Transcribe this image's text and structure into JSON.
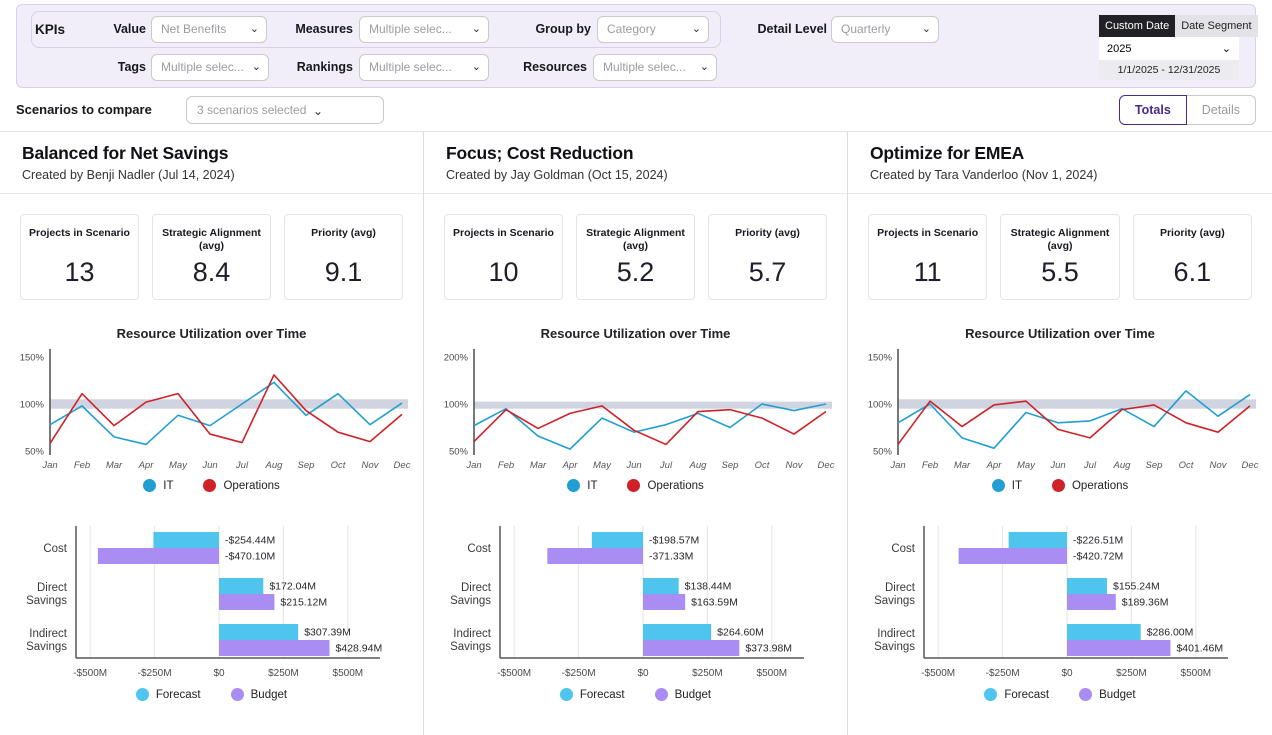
{
  "filters": {
    "kpis_label": "KPIs",
    "value": {
      "label": "Value",
      "selected": "Net Benefits"
    },
    "measures": {
      "label": "Measures",
      "selected": "Multiple selec..."
    },
    "group_by": {
      "label": "Group by",
      "selected": "Category"
    },
    "detail_level": {
      "label": "Detail Level",
      "selected": "Quarterly"
    },
    "tags": {
      "label": "Tags",
      "selected": "Multiple selec..."
    },
    "rankings": {
      "label": "Rankings",
      "selected": "Multiple selec..."
    },
    "resources": {
      "label": "Resources",
      "selected": "Multiple selec..."
    },
    "date_widget": {
      "tab_custom": "Custom Date",
      "tab_segment": "Date Segment",
      "active_tab": "Custom Date",
      "year": "2025",
      "range": "1/1/2025 - 12/31/2025"
    }
  },
  "scenario_bar": {
    "label": "Scenarios to compare",
    "selected": "3 scenarios selected",
    "totals_label": "Totals",
    "details_label": "Details",
    "active_view": "Totals"
  },
  "colors": {
    "it": "#219fd2",
    "operations": "#cf2127",
    "forecast": "#4fc4ec",
    "budget": "#a98df2",
    "band": "#cdd2df",
    "accent": "#4b2a85"
  },
  "scenarios": [
    {
      "title": "Balanced for Net Savings",
      "subtitle": "Created by Benji Nadler (Jul 14, 2024)",
      "kpis": [
        {
          "label": "Projects in Scenario",
          "value": "13"
        },
        {
          "label": "Strategic Alignment (avg)",
          "value": "8.4"
        },
        {
          "label": "Priority (avg)",
          "value": "9.1"
        }
      ],
      "line_chart": {
        "type": "line",
        "title": "Resource Utilization over Time",
        "months": [
          "Jan",
          "Feb",
          "Mar",
          "Apr",
          "May",
          "Jun",
          "Jul",
          "Aug",
          "Sep",
          "Oct",
          "Nov",
          "Dec"
        ],
        "yticks": [
          50,
          100,
          150
        ],
        "ytick_labels": [
          "50%",
          "100%",
          "150%"
        ],
        "band": [
          95,
          105
        ],
        "series": [
          {
            "name": "IT",
            "color": "#219fd2",
            "values": [
              78,
              98,
              65,
              57,
              88,
              77,
              100,
              123,
              88,
              111,
              78,
              101
            ]
          },
          {
            "name": "Operations",
            "color": "#cf2127",
            "values": [
              58,
              111,
              77,
              102,
              111,
              68,
              59,
              131,
              93,
              70,
              60,
              89
            ]
          }
        ]
      },
      "bar_chart": {
        "type": "bar",
        "categories": [
          "Cost",
          "Direct Savings",
          "Indirect Savings"
        ],
        "xtick_labels": [
          "-$500M",
          "-$250M",
          "$0",
          "$250M",
          "$500M"
        ],
        "xtick_values": [
          -500,
          -250,
          0,
          250,
          500
        ],
        "series": [
          {
            "name": "Forecast",
            "color": "#4fc4ec",
            "values": [
              -254.44,
              172.04,
              307.39
            ],
            "labels": [
              "-$254.44M",
              "$172.04M",
              "$307.39M"
            ]
          },
          {
            "name": "Budget",
            "color": "#a98df2",
            "values": [
              -470.1,
              215.12,
              428.94
            ],
            "labels": [
              "-$470.10M",
              "$215.12M",
              "$428.94M"
            ]
          }
        ]
      }
    },
    {
      "title": "Focus; Cost Reduction",
      "subtitle": "Created by Jay Goldman (Oct 15, 2024)",
      "kpis": [
        {
          "label": "Projects in Scenario",
          "value": "10"
        },
        {
          "label": "Strategic Alignment (avg)",
          "value": "5.2"
        },
        {
          "label": "Priority (avg)",
          "value": "5.7"
        }
      ],
      "line_chart": {
        "type": "line",
        "title": "Resource Utilization over Time",
        "months": [
          "Jan",
          "Feb",
          "Mar",
          "Apr",
          "May",
          "Jun",
          "Jul",
          "Aug",
          "Sep",
          "Oct",
          "Nov",
          "Dec"
        ],
        "yticks": [
          50,
          100,
          200
        ],
        "ytick_labels": [
          "50%",
          "100%",
          "200%"
        ],
        "band": [
          95,
          105
        ],
        "series": [
          {
            "name": "IT",
            "color": "#219fd2",
            "values": [
              77,
              95,
              66,
              52,
              85,
              70,
              78,
              90,
              75,
              100,
              93,
              100
            ]
          },
          {
            "name": "Operations",
            "color": "#cf2127",
            "values": [
              60,
              94,
              74,
              90,
              98,
              72,
              57,
              92,
              94,
              85,
              68,
              92
            ]
          }
        ]
      },
      "bar_chart": {
        "type": "bar",
        "categories": [
          "Cost",
          "Direct Savings",
          "Indirect Savings"
        ],
        "xtick_labels": [
          "-$500M",
          "-$250M",
          "$0",
          "$250M",
          "$500M"
        ],
        "xtick_values": [
          -500,
          -250,
          0,
          250,
          500
        ],
        "series": [
          {
            "name": "Forecast",
            "color": "#4fc4ec",
            "values": [
              -198.57,
              138.44,
              264.6
            ],
            "labels": [
              "-$198.57M",
              "$138.44M",
              "$264.60M"
            ]
          },
          {
            "name": "Budget",
            "color": "#a98df2",
            "values": [
              -371.33,
              163.59,
              373.98
            ],
            "labels": [
              "-371.33M",
              "$163.59M",
              "$373.98M"
            ]
          }
        ]
      }
    },
    {
      "title": "Optimize for EMEA",
      "subtitle": "Created by Tara Vanderloo (Nov 1, 2024)",
      "kpis": [
        {
          "label": "Projects in Scenario",
          "value": "11"
        },
        {
          "label": "Strategic Alignment (avg)",
          "value": "5.5"
        },
        {
          "label": "Priority (avg)",
          "value": "6.1"
        }
      ],
      "line_chart": {
        "type": "line",
        "title": "Resource Utilization over Time",
        "months": [
          "Jan",
          "Feb",
          "Mar",
          "Apr",
          "May",
          "Jun",
          "Jul",
          "Aug",
          "Sep",
          "Oct",
          "Nov",
          "Dec"
        ],
        "yticks": [
          50,
          100,
          150
        ],
        "ytick_labels": [
          "50%",
          "100%",
          "150%"
        ],
        "band": [
          95,
          105
        ],
        "series": [
          {
            "name": "IT",
            "color": "#219fd2",
            "values": [
              80,
              100,
              64,
              53,
              91,
              80,
              82,
              95,
              76,
              114,
              87,
              110
            ]
          },
          {
            "name": "Operations",
            "color": "#cf2127",
            "values": [
              57,
              103,
              76,
              99,
              103,
              73,
              64,
              94,
              99,
              80,
              70,
              98
            ]
          }
        ]
      },
      "bar_chart": {
        "type": "bar",
        "categories": [
          "Cost",
          "Direct Savings",
          "Indirect Savings"
        ],
        "xtick_labels": [
          "-$500M",
          "-$250M",
          "$0",
          "$250M",
          "$500M"
        ],
        "xtick_values": [
          -500,
          -250,
          0,
          250,
          500
        ],
        "series": [
          {
            "name": "Forecast",
            "color": "#4fc4ec",
            "values": [
              -226.51,
              155.24,
              286.0
            ],
            "labels": [
              "-$226.51M",
              "$155.24M",
              "$286.00M"
            ]
          },
          {
            "name": "Budget",
            "color": "#a98df2",
            "values": [
              -420.72,
              189.36,
              401.46
            ],
            "labels": [
              "-$420.72M",
              "$189.36M",
              "$401.46M"
            ]
          }
        ]
      }
    }
  ]
}
